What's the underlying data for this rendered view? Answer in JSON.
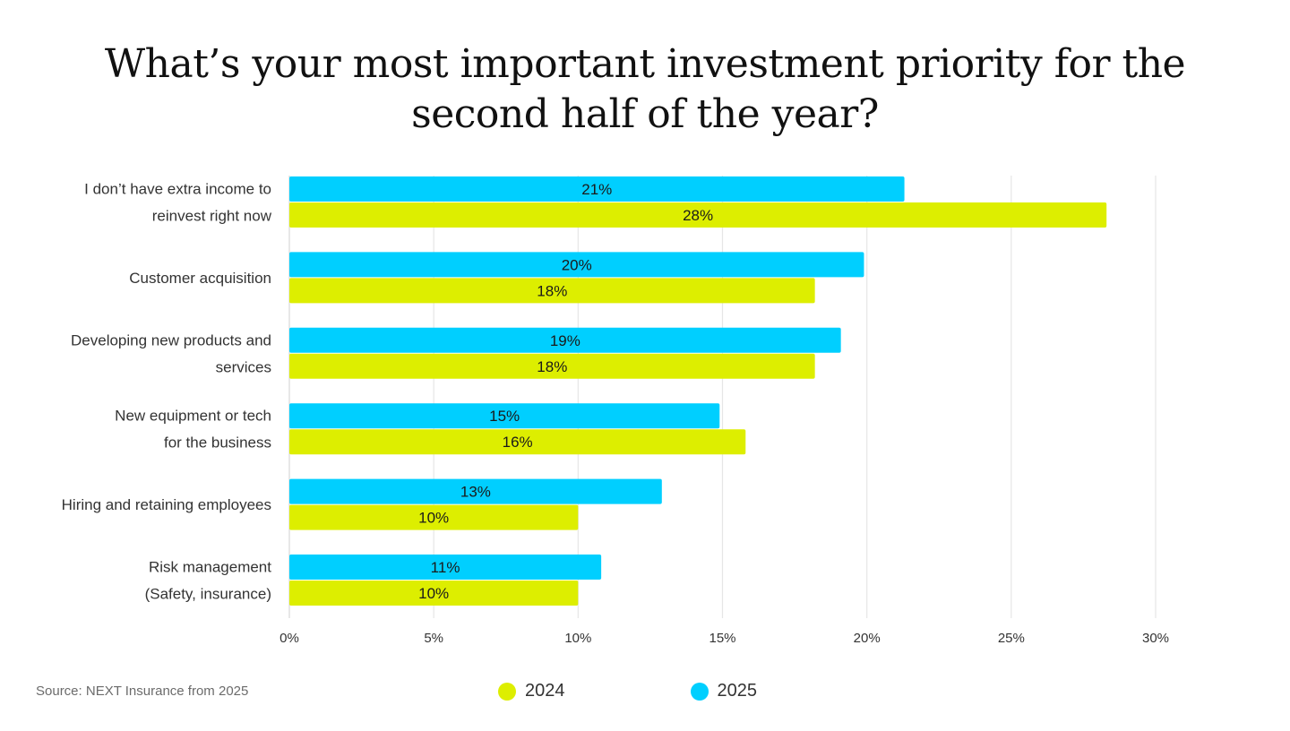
{
  "chart_data": {
    "type": "bar",
    "orientation": "horizontal",
    "title": "What’s your most important investment priority for the second half of the year?",
    "categories": [
      [
        "I don’t have extra income to",
        "reinvest right now"
      ],
      [
        "Customer acquisition"
      ],
      [
        "Developing new products and",
        "services"
      ],
      [
        "New equipment or tech",
        "for the business"
      ],
      [
        "Hiring and retaining employees"
      ],
      [
        "Risk management",
        "(Safety, insurance)"
      ]
    ],
    "series": [
      {
        "name": "2025",
        "color": "#00CFFF",
        "values": [
          21.3,
          19.9,
          19.1,
          14.9,
          12.9,
          10.8
        ],
        "labels": [
          "21%",
          "20%",
          "19%",
          "15%",
          "13%",
          "11%"
        ]
      },
      {
        "name": "2024",
        "color": "#DDEE00",
        "values": [
          28.3,
          18.2,
          18.2,
          15.8,
          10.0,
          10.0
        ],
        "labels": [
          "28%",
          "18%",
          "18%",
          "16%",
          "10%",
          "10%"
        ]
      }
    ],
    "xlim": [
      0,
      30
    ],
    "xticks": [
      0,
      5,
      10,
      15,
      20,
      25,
      30
    ],
    "xtick_labels": [
      "0%",
      "5%",
      "10%",
      "15%",
      "20%",
      "25%",
      "30%"
    ],
    "grid": true,
    "legend": "bottom-center",
    "legend_entries": [
      {
        "name": "2024",
        "color": "#DDEE00"
      },
      {
        "name": "2025",
        "color": "#00CFFF"
      }
    ],
    "source": "Source: NEXT Insurance from 2025"
  }
}
